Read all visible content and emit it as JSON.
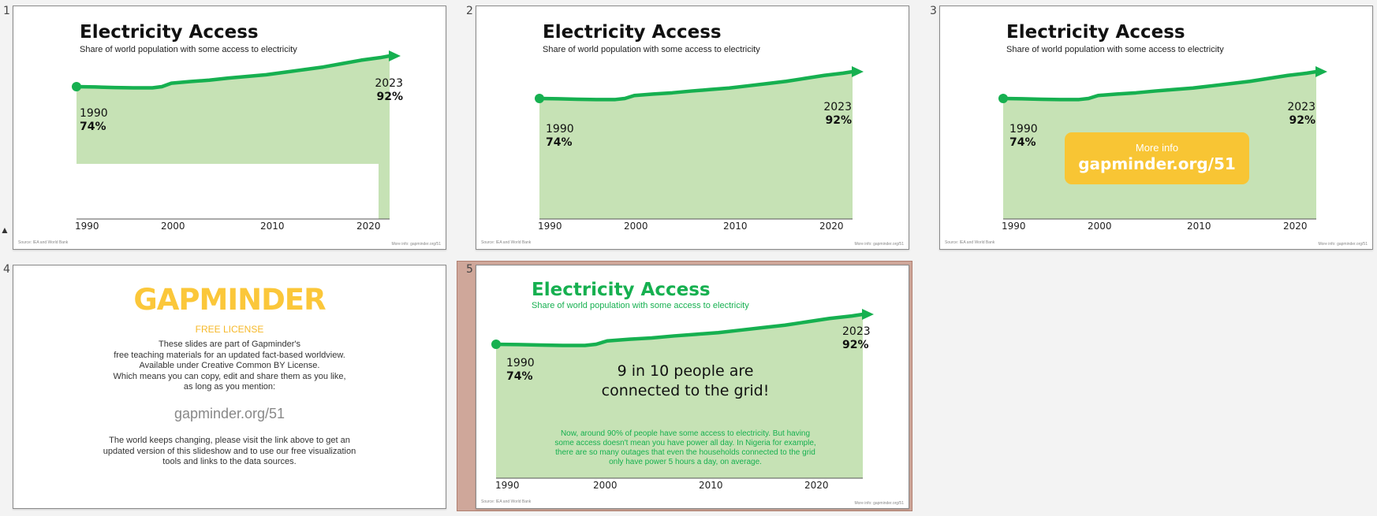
{
  "slides": [
    {
      "number": "1",
      "title": "Electricity Access",
      "subtitle": "Share of world population with some access to electricity",
      "start_year": "1990",
      "start_value": "74%",
      "end_year": "2023",
      "end_value": "92%",
      "ticks": [
        "1990",
        "2000",
        "2010",
        "2020"
      ],
      "source": "Source: IEA and World Bank",
      "more_info": "More info: gapminder.org/51"
    },
    {
      "number": "2",
      "title": "Electricity Access",
      "subtitle": "Share of world population with some access to electricity",
      "start_year": "1990",
      "start_value": "74%",
      "end_year": "2023",
      "end_value": "92%",
      "ticks": [
        "1990",
        "2000",
        "2010",
        "2020"
      ],
      "source": "Source: IEA and World Bank",
      "more_info": "More info: gapminder.org/51"
    },
    {
      "number": "3",
      "title": "Electricity Access",
      "subtitle": "Share of world population with some access to electricity",
      "start_year": "1990",
      "start_value": "74%",
      "end_year": "2023",
      "end_value": "92%",
      "ticks": [
        "1990",
        "2000",
        "2010",
        "2020"
      ],
      "source": "Source: IEA and World Bank",
      "more_info": "More info: gapminder.org/51",
      "badge_small": "More info",
      "badge_big": "gapminder.org/51"
    },
    {
      "number": "4",
      "logo": "GAPMINDER",
      "heading": "FREE LICENSE",
      "lines": [
        "These slides are part of Gapminder's",
        "free teaching materials for an updated fact-based worldview.",
        "Available under Creative Common BY License.",
        "Which means you can copy, edit and share them as you like,",
        "as long as you mention:"
      ],
      "link": "gapminder.org/51",
      "bottom": [
        "The world keeps changing, please visit the link above to get an",
        "updated version of this slideshow and to use our free visualization",
        "tools and links to the data sources."
      ]
    },
    {
      "number": "5",
      "title": "Electricity Access",
      "subtitle": "Share of world population with some access to electricity",
      "start_year": "1990",
      "start_value": "74%",
      "end_year": "2023",
      "end_value": "92%",
      "ticks": [
        "1990",
        "2000",
        "2010",
        "2020"
      ],
      "source": "Source: IEA and World Bank",
      "more_info": "More info: gapminder.org/51",
      "headline": [
        "9 in 10 people are",
        "connected to the grid!"
      ],
      "note": [
        "Now, around 90% of people have some access to electricity. But having",
        "some access doesn't mean you have power all day. In Nigeria for example,",
        "there are so many outages that even the households connected to the grid",
        "only have power 5 hours a day, on average."
      ]
    }
  ],
  "colors": {
    "line": "#16b050",
    "area": "#c6e2b5",
    "badge": "#f8c534",
    "logo": "#fbc73a",
    "title5": "#16b050",
    "selected": "#cfa79a"
  },
  "chart_data": {
    "type": "area",
    "title": "Electricity Access",
    "subtitle": "Share of world population with some access to electricity",
    "x": [
      1990,
      1992,
      1994,
      1996,
      1998,
      1999,
      2000,
      2002,
      2004,
      2006,
      2008,
      2010,
      2012,
      2014,
      2016,
      2018,
      2020,
      2022,
      2023
    ],
    "y": [
      74,
      73.8,
      73.5,
      73.3,
      73.3,
      74,
      76,
      77,
      77.8,
      79,
      80,
      81,
      82.5,
      84,
      85.5,
      87.5,
      89.5,
      91,
      92
    ],
    "xlim": [
      1990,
      2023
    ],
    "ticks": [
      "1990",
      "2000",
      "2010",
      "2020"
    ],
    "grid": false
  }
}
